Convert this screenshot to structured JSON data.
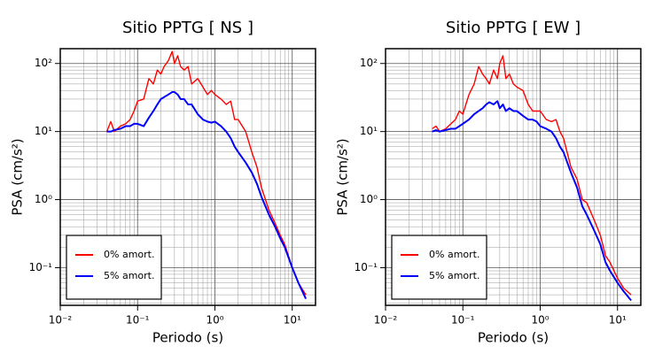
{
  "chart_data": [
    {
      "type": "line",
      "title": "Sitio PPTG [ NS ]",
      "xlabel": "Periodo (s)",
      "ylabel": "PSA (cm/s²)",
      "xscale": "log",
      "yscale": "log",
      "grid": true,
      "legend": "lower left",
      "xlim": [
        0.01,
        20
      ],
      "ylim": [
        0.028,
        165
      ],
      "xticks": [
        {
          "value": 0.01,
          "label": "10⁻²"
        },
        {
          "value": 0.1,
          "label": "10⁻¹"
        },
        {
          "value": 1,
          "label": "10⁰"
        },
        {
          "value": 10,
          "label": "10¹"
        }
      ],
      "yticks": [
        {
          "value": 0.1,
          "label": "10⁻¹"
        },
        {
          "value": 1,
          "label": "10⁰"
        },
        {
          "value": 10,
          "label": "10¹"
        },
        {
          "value": 100,
          "label": "10²"
        }
      ],
      "x": [
        0.04,
        0.045,
        0.05,
        0.06,
        0.07,
        0.08,
        0.09,
        0.1,
        0.12,
        0.14,
        0.16,
        0.18,
        0.2,
        0.22,
        0.25,
        0.28,
        0.3,
        0.33,
        0.36,
        0.4,
        0.45,
        0.5,
        0.6,
        0.7,
        0.8,
        0.9,
        1,
        1.2,
        1.4,
        1.6,
        1.8,
        2,
        2.5,
        3,
        3.5,
        4,
        5,
        6,
        7,
        8,
        10,
        12,
        15
      ],
      "series": [
        {
          "name": "0% amort.",
          "color": "#ff0000",
          "values": [
            10,
            14,
            10,
            12,
            13,
            15,
            20,
            28,
            30,
            60,
            50,
            80,
            70,
            90,
            110,
            150,
            100,
            130,
            90,
            80,
            90,
            50,
            60,
            45,
            35,
            40,
            35,
            30,
            25,
            28,
            15,
            15,
            10,
            5,
            3,
            1.5,
            0.7,
            0.45,
            0.3,
            0.22,
            0.1,
            0.06,
            0.04
          ]
        },
        {
          "name": "5% amort.",
          "color": "#0000ff",
          "values": [
            10,
            10,
            10.5,
            11,
            12,
            12,
            13,
            13,
            12,
            16,
            20,
            25,
            30,
            32,
            35,
            38,
            38,
            35,
            30,
            30,
            25,
            25,
            18,
            15,
            14,
            13.5,
            14,
            12,
            10,
            8,
            6,
            5,
            3.5,
            2.5,
            1.7,
            1.1,
            0.6,
            0.4,
            0.27,
            0.2,
            0.1,
            0.06,
            0.035
          ]
        }
      ]
    },
    {
      "type": "line",
      "title": "Sitio PPTG [ EW ]",
      "xlabel": "Periodo (s)",
      "ylabel": "PSA (cm/s²)",
      "xscale": "log",
      "yscale": "log",
      "grid": true,
      "legend": "lower left",
      "xlim": [
        0.01,
        20
      ],
      "ylim": [
        0.028,
        165
      ],
      "xticks": [
        {
          "value": 0.01,
          "label": "10⁻²"
        },
        {
          "value": 0.1,
          "label": "10⁻¹"
        },
        {
          "value": 1,
          "label": "10⁰"
        },
        {
          "value": 10,
          "label": "10¹"
        }
      ],
      "yticks": [
        {
          "value": 0.1,
          "label": "10⁻¹"
        },
        {
          "value": 1,
          "label": "10⁰"
        },
        {
          "value": 10,
          "label": "10¹"
        },
        {
          "value": 100,
          "label": "10²"
        }
      ],
      "x": [
        0.04,
        0.045,
        0.05,
        0.06,
        0.07,
        0.08,
        0.09,
        0.1,
        0.12,
        0.14,
        0.16,
        0.18,
        0.2,
        0.22,
        0.25,
        0.28,
        0.3,
        0.33,
        0.36,
        0.4,
        0.45,
        0.5,
        0.6,
        0.7,
        0.8,
        0.9,
        1,
        1.2,
        1.4,
        1.6,
        1.8,
        2,
        2.5,
        3,
        3.5,
        4,
        5,
        6,
        7,
        8,
        10,
        12,
        15
      ],
      "series": [
        {
          "name": "0% amort.",
          "color": "#ff0000",
          "values": [
            11,
            12,
            10,
            11,
            13,
            15,
            20,
            18,
            35,
            50,
            90,
            70,
            60,
            50,
            80,
            60,
            100,
            130,
            60,
            70,
            50,
            45,
            40,
            25,
            20,
            20,
            20,
            15,
            14,
            15,
            10,
            8,
            3,
            2,
            1,
            0.9,
            0.5,
            0.3,
            0.15,
            0.12,
            0.07,
            0.05,
            0.04
          ]
        },
        {
          "name": "5% amort.",
          "color": "#0000ff",
          "values": [
            10,
            10.5,
            10,
            10.5,
            11,
            11,
            12,
            13,
            15,
            18,
            20,
            22,
            25,
            27,
            25,
            28,
            22,
            25,
            20,
            22,
            20,
            20,
            17,
            15,
            15,
            14,
            12,
            11,
            10,
            8,
            6,
            5,
            2.5,
            1.5,
            0.8,
            0.6,
            0.35,
            0.22,
            0.12,
            0.09,
            0.06,
            0.045,
            0.033
          ]
        }
      ]
    }
  ]
}
